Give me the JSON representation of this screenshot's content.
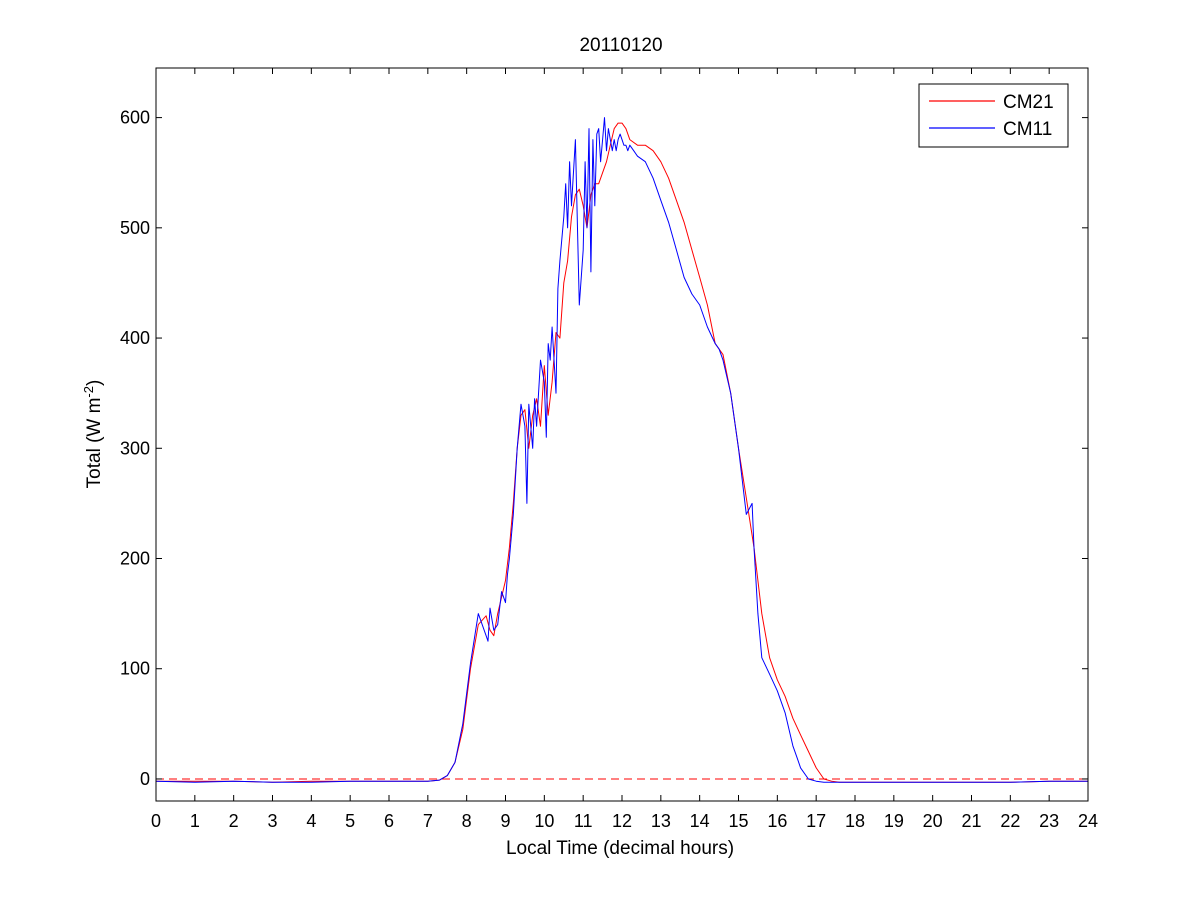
{
  "chart_data": {
    "type": "line",
    "title": "20110120",
    "xlabel": "Local Time (decimal hours)",
    "ylabel_main": "Total (W m",
    "ylabel_sup": "-2",
    "ylabel_close": ")",
    "xlim": [
      0,
      24
    ],
    "ylim": [
      -20,
      645
    ],
    "xticks": [
      0,
      1,
      2,
      3,
      4,
      5,
      6,
      7,
      8,
      9,
      10,
      11,
      12,
      13,
      14,
      15,
      16,
      17,
      18,
      19,
      20,
      21,
      22,
      23,
      24
    ],
    "yticks": [
      0,
      100,
      200,
      300,
      400,
      500,
      600
    ],
    "grid": false,
    "legend_position": "top-right",
    "reference_line": {
      "y": 0,
      "style": "dashed",
      "color": "#ff0000"
    },
    "series": [
      {
        "name": "CM21",
        "color": "#ff0000",
        "x": [
          0,
          1,
          2,
          3,
          4,
          5,
          6,
          7,
          7.3,
          7.5,
          7.7,
          7.9,
          8.1,
          8.3,
          8.5,
          8.6,
          8.7,
          8.8,
          8.9,
          9.0,
          9.1,
          9.2,
          9.3,
          9.4,
          9.5,
          9.6,
          9.7,
          9.8,
          9.9,
          10.0,
          10.1,
          10.2,
          10.3,
          10.4,
          10.5,
          10.6,
          10.7,
          10.8,
          10.9,
          11.0,
          11.1,
          11.2,
          11.3,
          11.4,
          11.5,
          11.6,
          11.7,
          11.8,
          11.9,
          12.0,
          12.1,
          12.2,
          12.4,
          12.6,
          12.8,
          13.0,
          13.2,
          13.4,
          13.6,
          13.8,
          14.0,
          14.2,
          14.4,
          14.5,
          14.6,
          14.8,
          15.0,
          15.2,
          15.4,
          15.6,
          15.8,
          16.0,
          16.2,
          16.4,
          16.6,
          16.8,
          17.0,
          17.2,
          17.4,
          17.6,
          18,
          19,
          20,
          21,
          22,
          23,
          24
        ],
        "y": [
          -2,
          -2,
          -2,
          -3,
          -2,
          -2,
          -2,
          -2,
          -1,
          3,
          15,
          45,
          100,
          140,
          148,
          135,
          130,
          150,
          165,
          180,
          210,
          250,
          300,
          330,
          335,
          300,
          330,
          345,
          320,
          375,
          330,
          360,
          405,
          400,
          450,
          470,
          510,
          530,
          535,
          520,
          500,
          530,
          540,
          540,
          550,
          560,
          575,
          590,
          595,
          595,
          590,
          580,
          575,
          575,
          570,
          560,
          545,
          525,
          505,
          480,
          455,
          430,
          395,
          390,
          385,
          350,
          300,
          255,
          210,
          150,
          110,
          90,
          75,
          55,
          40,
          25,
          10,
          0,
          -2,
          -3,
          -3,
          -3,
          -3,
          -3,
          -3,
          -2,
          -2
        ]
      },
      {
        "name": "CM11",
        "color": "#0000ff",
        "x": [
          0,
          1,
          2,
          3,
          4,
          5,
          6,
          7,
          7.3,
          7.5,
          7.7,
          7.9,
          8.1,
          8.3,
          8.5,
          8.55,
          8.6,
          8.7,
          8.8,
          8.9,
          9.0,
          9.05,
          9.1,
          9.2,
          9.3,
          9.4,
          9.5,
          9.55,
          9.6,
          9.7,
          9.75,
          9.8,
          9.9,
          10.0,
          10.05,
          10.1,
          10.15,
          10.2,
          10.3,
          10.35,
          10.4,
          10.5,
          10.55,
          10.6,
          10.65,
          10.7,
          10.8,
          10.9,
          11.0,
          11.05,
          11.1,
          11.15,
          11.2,
          11.25,
          11.3,
          11.35,
          11.4,
          11.45,
          11.5,
          11.55,
          11.6,
          11.65,
          11.7,
          11.75,
          11.8,
          11.85,
          11.9,
          11.95,
          12.0,
          12.05,
          12.1,
          12.15,
          12.2,
          12.3,
          12.4,
          12.6,
          12.8,
          13.0,
          13.2,
          13.4,
          13.6,
          13.8,
          14.0,
          14.2,
          14.4,
          14.5,
          14.6,
          14.8,
          15.0,
          15.2,
          15.35,
          15.4,
          15.5,
          15.6,
          15.8,
          16.0,
          16.1,
          16.2,
          16.3,
          16.4,
          16.5,
          16.6,
          16.8,
          17.0,
          17.2,
          17.4,
          17.6,
          18,
          19,
          20,
          21,
          22,
          23,
          24
        ],
        "y": [
          -2,
          -3,
          -2,
          -3,
          -3,
          -2,
          -2,
          -2,
          -1,
          3,
          15,
          50,
          105,
          150,
          130,
          125,
          155,
          135,
          140,
          170,
          160,
          185,
          200,
          240,
          300,
          340,
          320,
          250,
          340,
          300,
          345,
          320,
          380,
          360,
          310,
          395,
          380,
          410,
          350,
          445,
          470,
          510,
          540,
          500,
          560,
          520,
          580,
          430,
          480,
          560,
          500,
          590,
          460,
          580,
          520,
          585,
          590,
          560,
          580,
          600,
          570,
          590,
          580,
          570,
          580,
          570,
          580,
          585,
          580,
          575,
          575,
          570,
          575,
          570,
          565,
          560,
          545,
          525,
          505,
          480,
          455,
          440,
          430,
          410,
          395,
          390,
          380,
          350,
          300,
          240,
          250,
          210,
          150,
          110,
          95,
          80,
          70,
          60,
          45,
          30,
          20,
          10,
          0,
          -2,
          -3,
          -3,
          -3,
          -3,
          -3,
          -3,
          -3,
          -3,
          -2,
          -2
        ]
      }
    ]
  }
}
